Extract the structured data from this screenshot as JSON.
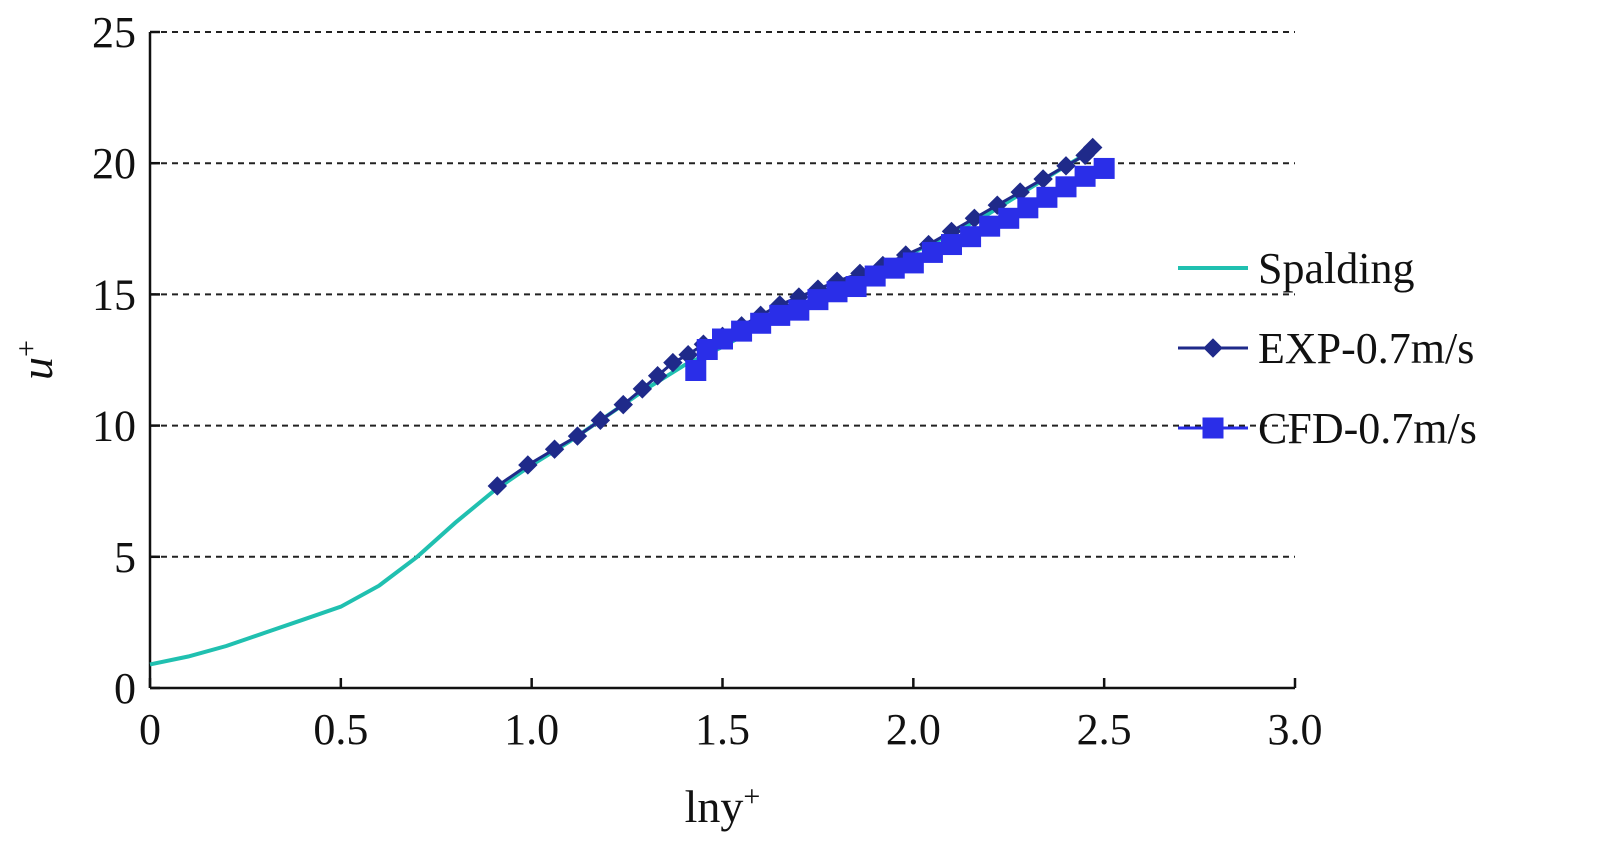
{
  "chart_data": {
    "type": "line",
    "title": "",
    "xlabel": "lny",
    "xlabel_sup": "+",
    "ylabel": "u",
    "ylabel_sup": "+",
    "xlim": [
      0,
      3.0
    ],
    "ylim": [
      0,
      25
    ],
    "x_ticks": [
      0,
      0.5,
      1.0,
      1.5,
      2.0,
      2.5,
      3.0
    ],
    "x_tick_labels": [
      "0",
      "0.5",
      "1.0",
      "1.5",
      "2.0",
      "2.5",
      "3.0"
    ],
    "y_ticks": [
      0,
      5,
      10,
      15,
      20,
      25
    ],
    "y_tick_labels": [
      "0",
      "5",
      "10",
      "15",
      "20",
      "25"
    ],
    "grid": "horizontal dashed",
    "legend_position": "right",
    "series": [
      {
        "name": "Spalding",
        "color": "#20c0b0",
        "marker": "none",
        "x": [
          0,
          0.1,
          0.2,
          0.3,
          0.4,
          0.5,
          0.6,
          0.7,
          0.8,
          0.9,
          1.0,
          1.1,
          1.2,
          1.3,
          1.4,
          1.5,
          1.6,
          1.7,
          1.8,
          1.9,
          2.0,
          2.1,
          2.2,
          2.3,
          2.4,
          2.47
        ],
        "y": [
          0.9,
          1.2,
          1.6,
          2.1,
          2.6,
          3.1,
          3.9,
          5.0,
          6.3,
          7.5,
          8.5,
          9.4,
          10.4,
          11.4,
          12.3,
          13.0,
          13.8,
          14.5,
          15.3,
          15.9,
          16.6,
          17.3,
          18.1,
          19.0,
          19.9,
          20.5
        ]
      },
      {
        "name": "EXP-0.7m/s",
        "color": "#1f2a8a",
        "marker": "diamond",
        "x": [
          0.91,
          0.99,
          1.06,
          1.12,
          1.18,
          1.24,
          1.29,
          1.33,
          1.37,
          1.41,
          1.45,
          1.5,
          1.55,
          1.6,
          1.65,
          1.7,
          1.75,
          1.8,
          1.86,
          1.92,
          1.98,
          2.04,
          2.1,
          2.16,
          2.22,
          2.28,
          2.34,
          2.4,
          2.45,
          2.47
        ],
        "y": [
          7.7,
          8.5,
          9.1,
          9.6,
          10.2,
          10.8,
          11.4,
          11.9,
          12.4,
          12.7,
          13.1,
          13.4,
          13.8,
          14.2,
          14.6,
          14.9,
          15.2,
          15.5,
          15.8,
          16.1,
          16.5,
          16.9,
          17.4,
          17.9,
          18.4,
          18.9,
          19.4,
          19.9,
          20.3,
          20.6
        ]
      },
      {
        "name": "CFD-0.7m/s",
        "color": "#2a2ee8",
        "marker": "square",
        "x": [
          1.43,
          1.46,
          1.5,
          1.55,
          1.6,
          1.65,
          1.7,
          1.75,
          1.8,
          1.85,
          1.9,
          1.95,
          2.0,
          2.05,
          2.1,
          2.15,
          2.2,
          2.25,
          2.3,
          2.35,
          2.4,
          2.45,
          2.5
        ],
        "y": [
          12.1,
          12.9,
          13.3,
          13.6,
          13.9,
          14.2,
          14.4,
          14.8,
          15.1,
          15.3,
          15.7,
          16.0,
          16.2,
          16.6,
          16.9,
          17.2,
          17.6,
          17.9,
          18.3,
          18.7,
          19.1,
          19.5,
          19.8
        ]
      }
    ]
  }
}
